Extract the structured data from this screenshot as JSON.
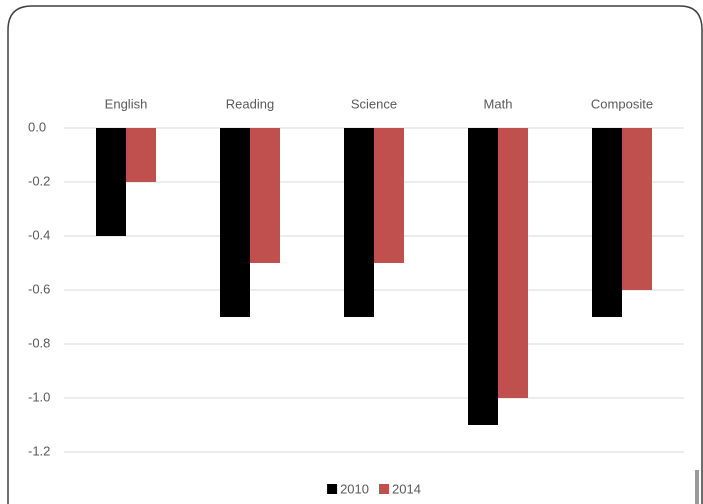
{
  "chart_data": {
    "type": "bar",
    "categories": [
      "English",
      "Reading",
      "Science",
      "Math",
      "Composite"
    ],
    "series": [
      {
        "name": "2010",
        "color": "#000000",
        "values": [
          -0.4,
          -0.7,
          -0.7,
          -1.1,
          -0.7
        ]
      },
      {
        "name": "2014",
        "color": "#c0504d",
        "values": [
          -0.2,
          -0.5,
          -0.5,
          -1.0,
          -0.6
        ]
      }
    ],
    "ylim": [
      -1.2,
      0
    ],
    "yticks": [
      {
        "value": 0,
        "label": "0.0"
      },
      -0.2,
      -0.4,
      -0.6,
      -0.8,
      {
        "value": -1,
        "label": "-1.0"
      },
      -1.2
    ],
    "grid": true,
    "legend": "bottom"
  }
}
